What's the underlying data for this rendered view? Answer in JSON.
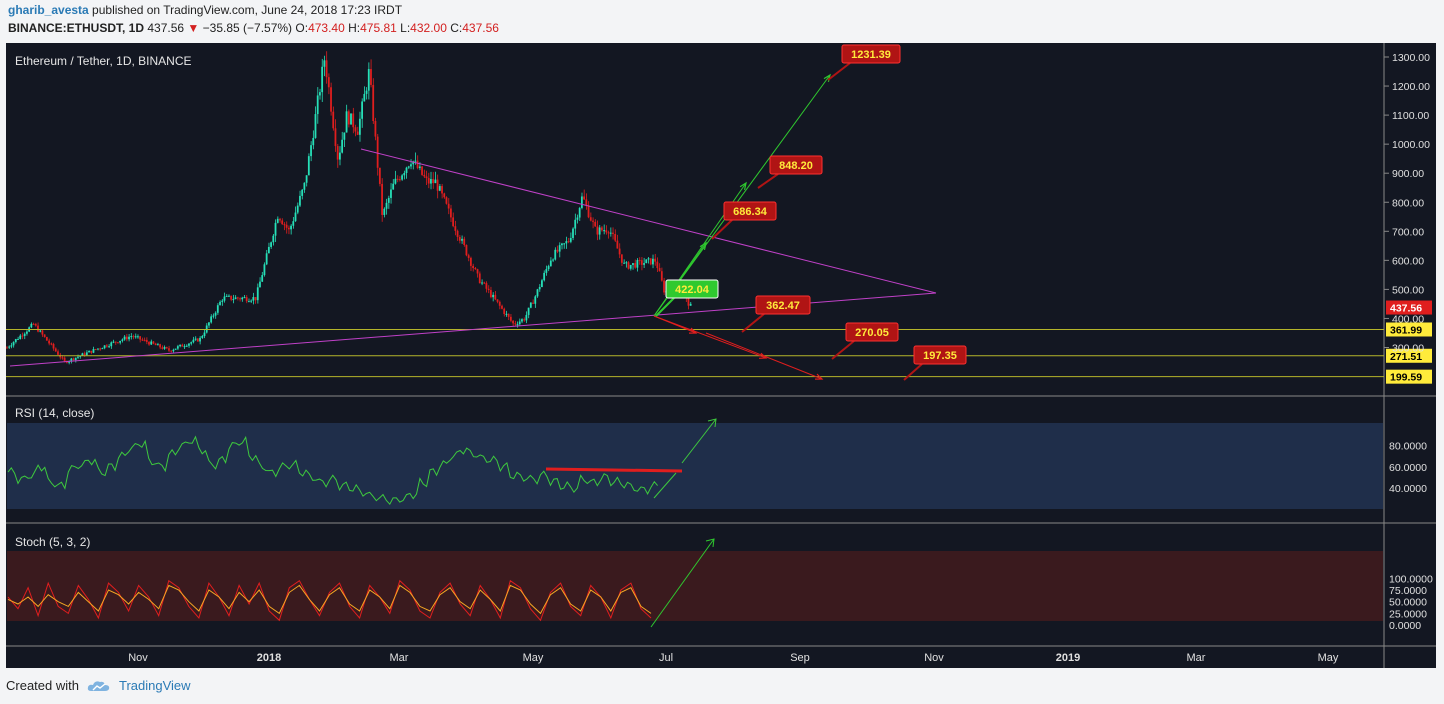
{
  "header": {
    "user": "gharib_avesta",
    "published": " published on TradingView.com, June 24, 2018 17:23 IRDT",
    "symbol": "BINANCE:ETHUSDT, 1D",
    "last": "437.56",
    "change": "−35.85 (−7.57%)",
    "o_label": "O:",
    "o": "473.40",
    "h_label": "H:",
    "h": "475.81",
    "l_label": "L:",
    "l": "432.00",
    "c_label": "C:",
    "c": "437.56"
  },
  "colors": {
    "bg": "#131722",
    "up": "#26e0b8",
    "down": "#e01e1e",
    "trend": "#c041c8",
    "support": "#b5b52a",
    "rsi": "#3ec93e",
    "stoch_k": "#e01e1e",
    "stoch_d": "#f5a623",
    "rsi_band": "#1f2e4a",
    "stoch_band": "#3a1a1e",
    "callout_red": "#b01414",
    "callout_green": "#2fc92f"
  },
  "chart_data": [
    {
      "type": "candlestick",
      "title": "Ethereum / Tether, 1D, BINANCE",
      "y_ticks": [
        "1300.00",
        "1200.00",
        "1100.00",
        "1000.00",
        "900.00",
        "800.00",
        "700.00",
        "600.00",
        "500.00",
        "400.00",
        "300.00"
      ],
      "ylim": [
        200,
        1360
      ],
      "x_ticks": [
        "Nov",
        "2018",
        "Mar",
        "May",
        "Jul",
        "Sep",
        "Nov",
        "2019",
        "Mar",
        "May"
      ],
      "current_price": "437.56",
      "support_levels": [
        {
          "label": "361.99",
          "value": 361.99
        },
        {
          "label": "271.51",
          "value": 271.51
        },
        {
          "label": "199.59",
          "value": 199.59
        }
      ],
      "price_points": [
        [
          "2017-08-20",
          300
        ],
        [
          "2017-09-01",
          380
        ],
        [
          "2017-09-15",
          250
        ],
        [
          "2017-10-01",
          300
        ],
        [
          "2017-10-15",
          340
        ],
        [
          "2017-11-01",
          290
        ],
        [
          "2017-11-15",
          330
        ],
        [
          "2017-11-25",
          470
        ],
        [
          "2017-12-10",
          470
        ],
        [
          "2017-12-20",
          760
        ],
        [
          "2017-12-25",
          700
        ],
        [
          "2018-01-01",
          860
        ],
        [
          "2018-01-05",
          1050
        ],
        [
          "2018-01-10",
          1300
        ],
        [
          "2018-01-16",
          950
        ],
        [
          "2018-01-20",
          1100
        ],
        [
          "2018-01-25",
          1050
        ],
        [
          "2018-01-30",
          1250
        ],
        [
          "2018-02-05",
          750
        ],
        [
          "2018-02-10",
          860
        ],
        [
          "2018-02-18",
          950
        ],
        [
          "2018-02-25",
          870
        ],
        [
          "2018-03-01",
          870
        ],
        [
          "2018-03-10",
          710
        ],
        [
          "2018-03-20",
          540
        ],
        [
          "2018-03-28",
          460
        ],
        [
          "2018-04-05",
          380
        ],
        [
          "2018-04-10",
          400
        ],
        [
          "2018-04-15",
          480
        ],
        [
          "2018-04-22",
          610
        ],
        [
          "2018-04-30",
          670
        ],
        [
          "2018-05-06",
          820
        ],
        [
          "2018-05-12",
          700
        ],
        [
          "2018-05-18",
          710
        ],
        [
          "2018-05-25",
          580
        ],
        [
          "2018-06-01",
          590
        ],
        [
          "2018-06-08",
          600
        ],
        [
          "2018-06-12",
          490
        ],
        [
          "2018-06-18",
          520
        ],
        [
          "2018-06-22",
          460
        ],
        [
          "2018-06-24",
          437.56
        ]
      ],
      "callouts": [
        {
          "label": "1231.39",
          "value": 1231.39,
          "color": "red"
        },
        {
          "label": "848.20",
          "value": 848.2,
          "color": "red"
        },
        {
          "label": "686.34",
          "value": 686.34,
          "color": "red"
        },
        {
          "label": "422.04",
          "value": 422.04,
          "color": "green"
        },
        {
          "label": "362.47",
          "value": 362.47,
          "color": "red"
        },
        {
          "label": "270.05",
          "value": 270.05,
          "color": "red"
        },
        {
          "label": "197.35",
          "value": 197.35,
          "color": "red"
        }
      ]
    },
    {
      "type": "line",
      "title": "RSI (14, close)",
      "y_ticks": [
        "80.0000",
        "60.0000",
        "40.0000"
      ],
      "band": [
        30,
        70
      ],
      "values": [
        55,
        48,
        52,
        60,
        45,
        42,
        58,
        62,
        66,
        55,
        60,
        70,
        78,
        82,
        65,
        60,
        72,
        80,
        85,
        76,
        62,
        66,
        80,
        84,
        70,
        60,
        54,
        60,
        62,
        55,
        50,
        45,
        48,
        42,
        40,
        36,
        32,
        30,
        28,
        30,
        34,
        45,
        55,
        62,
        70,
        76,
        72,
        68,
        66,
        60,
        52,
        50,
        48,
        52,
        46,
        42,
        40,
        48,
        45,
        50,
        46,
        44,
        40,
        38,
        42
      ]
    },
    {
      "type": "line",
      "title": "Stoch (5, 3, 2)",
      "y_ticks": [
        "100.0000",
        "75.0000",
        "50.0000",
        "25.0000",
        "0.0000"
      ],
      "band": [
        20,
        80
      ],
      "k": [
        60,
        35,
        80,
        20,
        90,
        40,
        25,
        85,
        55,
        15,
        90,
        70,
        30,
        85,
        60,
        20,
        95,
        80,
        40,
        15,
        90,
        60,
        20,
        85,
        45,
        90,
        30,
        10,
        80,
        95,
        55,
        20,
        70,
        90,
        40,
        15,
        85,
        60,
        25,
        95,
        75,
        30,
        15,
        70,
        90,
        45,
        20,
        85,
        55,
        15,
        95,
        80,
        35,
        10,
        70,
        90,
        40,
        20,
        85,
        60,
        15,
        75,
        90,
        35,
        15
      ],
      "d": [
        55,
        45,
        60,
        40,
        65,
        50,
        40,
        70,
        50,
        30,
        75,
        65,
        45,
        70,
        55,
        35,
        85,
        75,
        50,
        30,
        75,
        60,
        35,
        70,
        50,
        75,
        40,
        25,
        70,
        85,
        55,
        30,
        65,
        80,
        45,
        30,
        75,
        60,
        35,
        85,
        70,
        40,
        30,
        65,
        80,
        50,
        35,
        75,
        55,
        30,
        85,
        75,
        45,
        25,
        65,
        80,
        45,
        30,
        75,
        60,
        30,
        70,
        80,
        40,
        25
      ]
    }
  ],
  "footer": {
    "created_with": "Created with",
    "brand": "TradingView"
  }
}
